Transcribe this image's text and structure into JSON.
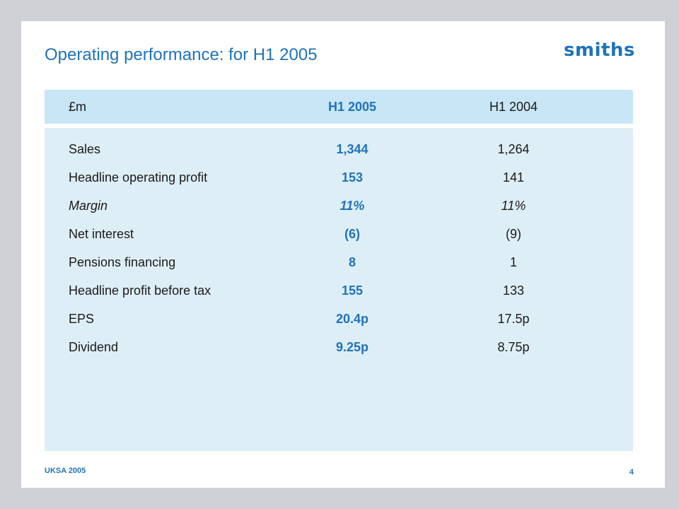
{
  "title": "Operating performance: for H1 2005",
  "brand": "smiths",
  "table": {
    "headers": [
      "£m",
      "H1 2005",
      "H1 2004"
    ],
    "rows": [
      {
        "label": "Sales",
        "h1_2005": "1,344",
        "h1_2004": "1,264"
      },
      {
        "label": "Headline operating profit",
        "h1_2005": "153",
        "h1_2004": "141"
      },
      {
        "label": "Margin",
        "h1_2005": "11%",
        "h1_2004": "11%"
      },
      {
        "label": "Net interest",
        "h1_2005": "(6)",
        "h1_2004": "(9)"
      },
      {
        "label": "Pensions financing",
        "h1_2005": "8",
        "h1_2004": "1"
      },
      {
        "label": "Headline profit before tax",
        "h1_2005": "155",
        "h1_2004": "133"
      },
      {
        "label": "EPS",
        "h1_2005": "20.4p",
        "h1_2004": "17.5p"
      },
      {
        "label": "Dividend",
        "h1_2005": "9.25p",
        "h1_2004": "8.75p"
      }
    ]
  },
  "footer": {
    "event": "UKSA 2005",
    "page_number": "4"
  },
  "colors": {
    "accent": "#1f73b8",
    "header_band": "#c8e6f6",
    "table_bg": "#deeef6",
    "frame": "#cfd1d6"
  }
}
